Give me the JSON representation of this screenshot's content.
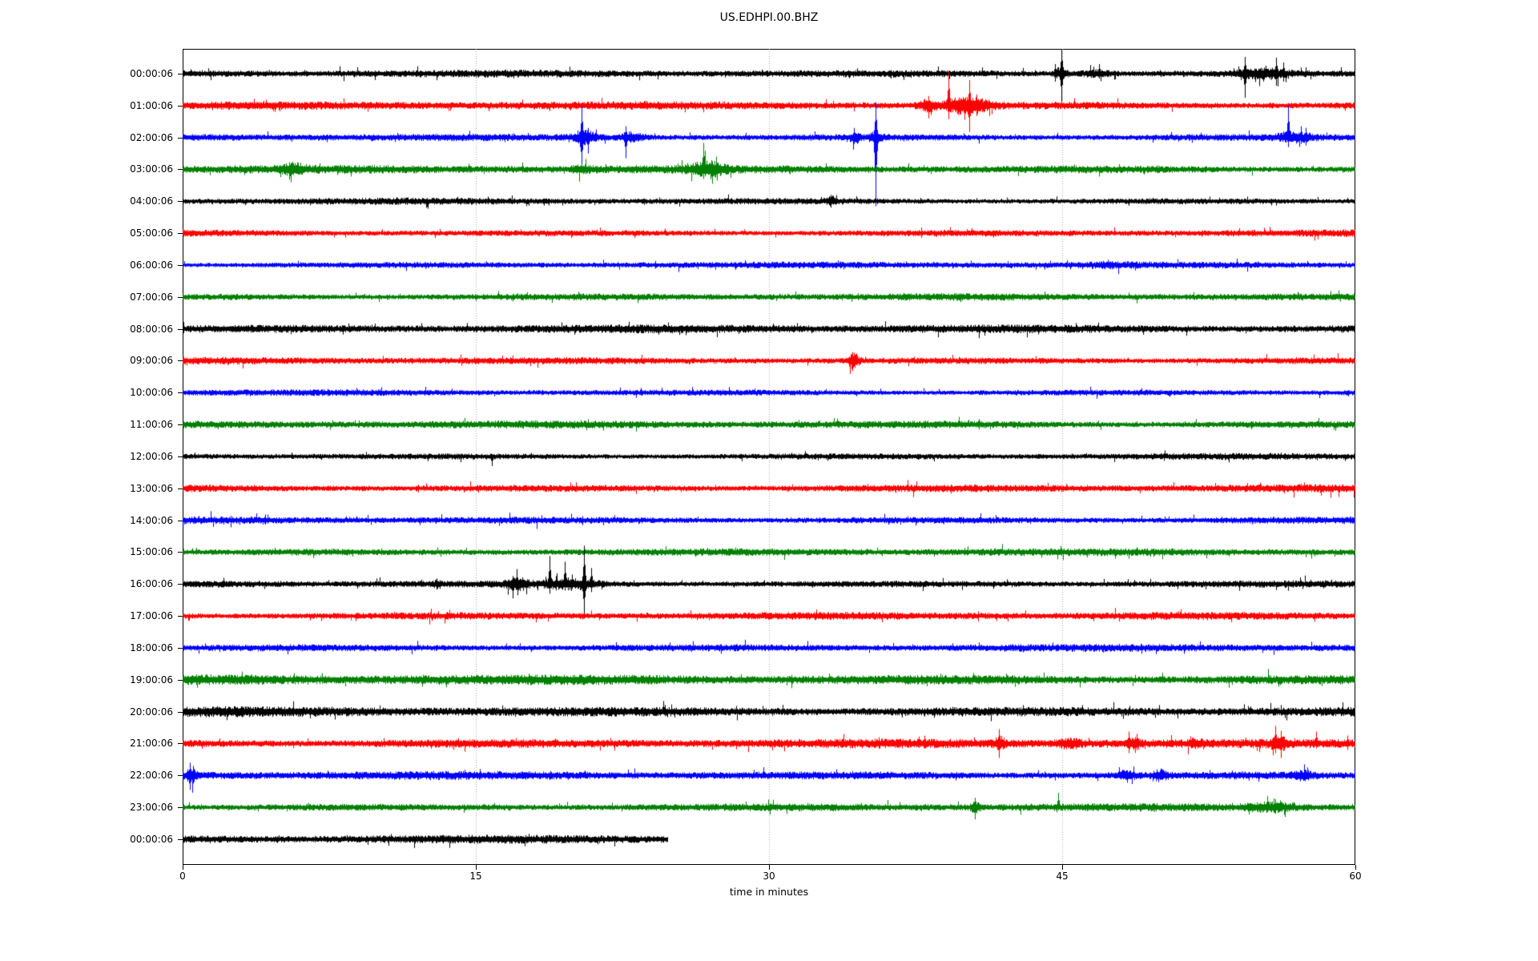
{
  "title": "US.EDHPI.00.BHZ",
  "xaxis": {
    "label": "time in minutes",
    "ticks": [
      "0",
      "15",
      "30",
      "45",
      "60"
    ]
  },
  "colors": {
    "trace_cycle": [
      "#000000",
      "#ff0000",
      "#0000ff",
      "#008000"
    ],
    "grid": "#a6a6a6",
    "axis": "#000000",
    "background": "#ffffff"
  },
  "chart_data": {
    "type": "line",
    "subtype": "seismogram-dayplot",
    "title": "US.EDHPI.00.BHZ",
    "xlabel": "time in minutes",
    "x_range_minutes": [
      0,
      60
    ],
    "x_ticks": [
      0,
      15,
      30,
      45,
      60
    ],
    "x_gridlines_minutes": [
      15,
      30,
      45
    ],
    "minutes_per_row": 60,
    "rows": [
      {
        "label": "00:00:06",
        "color": "#000000",
        "amp": 4.0,
        "end_min": 60,
        "bursts": [
          {
            "t0": 44.6,
            "t1": 45.3,
            "boost": 1.4
          },
          {
            "t0": 45.9,
            "t1": 47.6,
            "boost": 0.7
          },
          {
            "t0": 53.9,
            "t1": 56.6,
            "boost": 1.1
          }
        ],
        "spikes": [
          {
            "t": 44.95,
            "up": 33,
            "down": 35
          },
          {
            "t": 44.62,
            "up": 12,
            "down": 10
          },
          {
            "t": 46.9,
            "up": 12,
            "down": 6
          },
          {
            "t": 54.35,
            "up": 21,
            "down": 30
          },
          {
            "t": 55.95,
            "up": 20,
            "down": 15
          },
          {
            "t": 56.3,
            "up": 14,
            "down": 10
          }
        ]
      },
      {
        "label": "01:00:06",
        "color": "#ff0000",
        "amp": 4.5,
        "end_min": 60,
        "bursts": [
          {
            "t0": 37.6,
            "t1": 38.6,
            "boost": 1.1
          },
          {
            "t0": 38.9,
            "t1": 41.3,
            "boost": 1.9
          }
        ],
        "spikes": [
          {
            "t": 38.15,
            "up": 12,
            "down": 16
          },
          {
            "t": 39.2,
            "up": 42,
            "down": 17
          },
          {
            "t": 40.25,
            "up": 32,
            "down": 33
          },
          {
            "t": 40.6,
            "up": 14,
            "down": 12
          }
        ]
      },
      {
        "label": "02:00:06",
        "color": "#0000ff",
        "amp": 4.0,
        "end_min": 60,
        "bursts": [
          {
            "t0": 19.9,
            "t1": 21.2,
            "boost": 1.5
          },
          {
            "t0": 22.3,
            "t1": 23.6,
            "boost": 1.1
          },
          {
            "t0": 34.1,
            "t1": 34.7,
            "boost": 1.0
          },
          {
            "t0": 35.1,
            "t1": 35.8,
            "boost": 1.2
          },
          {
            "t0": 56.1,
            "t1": 57.7,
            "boost": 1.0
          }
        ],
        "spikes": [
          {
            "t": 20.42,
            "up": 39,
            "down": 40
          },
          {
            "t": 20.75,
            "up": 12,
            "down": 20
          },
          {
            "t": 22.65,
            "up": 14,
            "down": 26
          },
          {
            "t": 34.35,
            "up": 12,
            "down": 8
          },
          {
            "t": 35.45,
            "up": 44,
            "down": 86
          },
          {
            "t": 56.55,
            "up": 40,
            "down": 12
          },
          {
            "t": 57.2,
            "up": 14,
            "down": 8
          },
          {
            "t": 57.45,
            "up": 12,
            "down": 10
          }
        ]
      },
      {
        "label": "03:00:06",
        "color": "#008000",
        "amp": 4.5,
        "end_min": 60,
        "bursts": [
          {
            "t0": 5.1,
            "t1": 6.3,
            "boost": 1.0
          },
          {
            "t0": 19.9,
            "t1": 20.9,
            "boost": 0.7
          },
          {
            "t0": 25.9,
            "t1": 27.8,
            "boost": 1.4
          }
        ],
        "spikes": [
          {
            "t": 5.55,
            "up": 8,
            "down": 16
          },
          {
            "t": 26.62,
            "up": 33,
            "down": 12
          },
          {
            "t": 27.1,
            "up": 10,
            "down": 18
          },
          {
            "t": 27.35,
            "up": 8,
            "down": 14
          }
        ]
      },
      {
        "label": "04:00:06",
        "color": "#000000",
        "amp": 3.6,
        "end_min": 60,
        "bursts": [
          {
            "t0": 32.9,
            "t1": 33.5,
            "boost": 0.8
          }
        ],
        "spikes": [
          {
            "t": 33.15,
            "up": 8,
            "down": 8
          }
        ]
      },
      {
        "label": "05:00:06",
        "color": "#ff0000",
        "amp": 3.8,
        "end_min": 60,
        "bursts": [],
        "spikes": []
      },
      {
        "label": "06:00:06",
        "color": "#0000ff",
        "amp": 3.6,
        "end_min": 60,
        "bursts": [
          {
            "t0": 46.3,
            "t1": 48.6,
            "boost": 0.4
          }
        ],
        "spikes": []
      },
      {
        "label": "07:00:06",
        "color": "#008000",
        "amp": 3.8,
        "end_min": 60,
        "bursts": [],
        "spikes": []
      },
      {
        "label": "08:00:06",
        "color": "#000000",
        "amp": 4.6,
        "end_min": 60,
        "bursts": [],
        "spikes": []
      },
      {
        "label": "09:00:06",
        "color": "#ff0000",
        "amp": 4.0,
        "end_min": 60,
        "bursts": [
          {
            "t0": 34.0,
            "t1": 34.6,
            "boost": 2.0
          }
        ],
        "spikes": [
          {
            "t": 34.28,
            "up": 11,
            "down": 13
          }
        ]
      },
      {
        "label": "10:00:06",
        "color": "#0000ff",
        "amp": 3.6,
        "end_min": 60,
        "bursts": [],
        "spikes": []
      },
      {
        "label": "11:00:06",
        "color": "#008000",
        "amp": 4.2,
        "end_min": 60,
        "bursts": [],
        "spikes": []
      },
      {
        "label": "12:00:06",
        "color": "#000000",
        "amp": 3.6,
        "end_min": 60,
        "bursts": [],
        "spikes": [
          {
            "t": 15.82,
            "up": 3,
            "down": 12
          }
        ]
      },
      {
        "label": "13:00:06",
        "color": "#ff0000",
        "amp": 4.2,
        "end_min": 60,
        "bursts": [],
        "spikes": []
      },
      {
        "label": "14:00:06",
        "color": "#0000ff",
        "amp": 4.0,
        "end_min": 60,
        "bursts": [],
        "spikes": []
      },
      {
        "label": "15:00:06",
        "color": "#008000",
        "amp": 4.0,
        "end_min": 60,
        "bursts": [],
        "spikes": []
      },
      {
        "label": "16:00:06",
        "color": "#000000",
        "amp": 4.0,
        "end_min": 60,
        "bursts": [
          {
            "t0": 12.8,
            "t1": 13.2,
            "boost": 0.5
          },
          {
            "t0": 16.55,
            "t1": 17.7,
            "boost": 1.5
          },
          {
            "t0": 18.4,
            "t1": 21.3,
            "boost": 1.1
          }
        ],
        "spikes": [
          {
            "t": 13.0,
            "up": 7,
            "down": 7
          },
          {
            "t": 16.9,
            "up": 10,
            "down": 18
          },
          {
            "t": 17.15,
            "up": 8,
            "down": 14
          },
          {
            "t": 18.78,
            "up": 35,
            "down": 12
          },
          {
            "t": 19.1,
            "up": 10,
            "down": 8
          },
          {
            "t": 19.56,
            "up": 28,
            "down": 8
          },
          {
            "t": 19.9,
            "up": 12,
            "down": 6
          },
          {
            "t": 20.52,
            "up": 48,
            "down": 41
          },
          {
            "t": 20.92,
            "up": 20,
            "down": 10
          }
        ]
      },
      {
        "label": "17:00:06",
        "color": "#ff0000",
        "amp": 4.2,
        "end_min": 60,
        "bursts": [],
        "spikes": []
      },
      {
        "label": "18:00:06",
        "color": "#0000ff",
        "amp": 4.2,
        "end_min": 60,
        "bursts": [],
        "spikes": []
      },
      {
        "label": "19:00:06",
        "color": "#008000",
        "amp": 5.6,
        "end_min": 60,
        "bursts": [],
        "spikes": []
      },
      {
        "label": "20:00:06",
        "color": "#000000",
        "amp": 5.6,
        "end_min": 60,
        "bursts": [],
        "spikes": []
      },
      {
        "label": "21:00:06",
        "color": "#ff0000",
        "amp": 5.0,
        "end_min": 60,
        "bursts": [
          {
            "t0": 41.5,
            "t1": 42.1,
            "boost": 1.0
          },
          {
            "t0": 44.8,
            "t1": 46.0,
            "boost": 0.8
          },
          {
            "t0": 48.2,
            "t1": 49.0,
            "boost": 0.8
          },
          {
            "t0": 51.5,
            "t1": 52.2,
            "boost": 0.5
          },
          {
            "t0": 55.7,
            "t1": 56.5,
            "boost": 1.2
          }
        ],
        "spikes": [
          {
            "t": 41.78,
            "up": 18,
            "down": 18
          },
          {
            "t": 48.42,
            "up": 15,
            "down": 12
          },
          {
            "t": 48.8,
            "up": 12,
            "down": 8
          },
          {
            "t": 55.9,
            "up": 22,
            "down": 12
          },
          {
            "t": 56.2,
            "up": 16,
            "down": 18
          },
          {
            "t": 58.0,
            "up": 15,
            "down": 6
          },
          {
            "t": 59.6,
            "up": 10,
            "down": 8
          }
        ]
      },
      {
        "label": "22:00:06",
        "color": "#0000ff",
        "amp": 4.6,
        "end_min": 60,
        "bursts": [
          {
            "t0": 0.15,
            "t1": 0.7,
            "boost": 1.5
          },
          {
            "t0": 47.8,
            "t1": 48.8,
            "boost": 0.9
          },
          {
            "t0": 49.6,
            "t1": 50.4,
            "boost": 0.9
          },
          {
            "t0": 56.6,
            "t1": 57.9,
            "boost": 0.7
          }
        ],
        "spikes": [
          {
            "t": 0.35,
            "up": 16,
            "down": 18
          },
          {
            "t": 0.55,
            "up": 12,
            "down": 10
          },
          {
            "t": 15.2,
            "up": 8,
            "down": 4
          }
        ]
      },
      {
        "label": "23:00:06",
        "color": "#008000",
        "amp": 4.2,
        "end_min": 60,
        "bursts": [
          {
            "t0": 40.3,
            "t1": 40.8,
            "boost": 1.0
          },
          {
            "t0": 54.3,
            "t1": 57.0,
            "boost": 0.8
          }
        ],
        "spikes": [
          {
            "t": 40.52,
            "up": 12,
            "down": 15
          },
          {
            "t": 44.78,
            "up": 18,
            "down": 4
          },
          {
            "t": 55.5,
            "up": 14,
            "down": 6
          },
          {
            "t": 55.9,
            "up": 10,
            "down": 8
          },
          {
            "t": 56.4,
            "up": 6,
            "down": 12
          }
        ]
      },
      {
        "label": "00:00:06",
        "color": "#000000",
        "amp": 4.6,
        "end_min": 24.8,
        "bursts": [],
        "spikes": []
      }
    ]
  }
}
